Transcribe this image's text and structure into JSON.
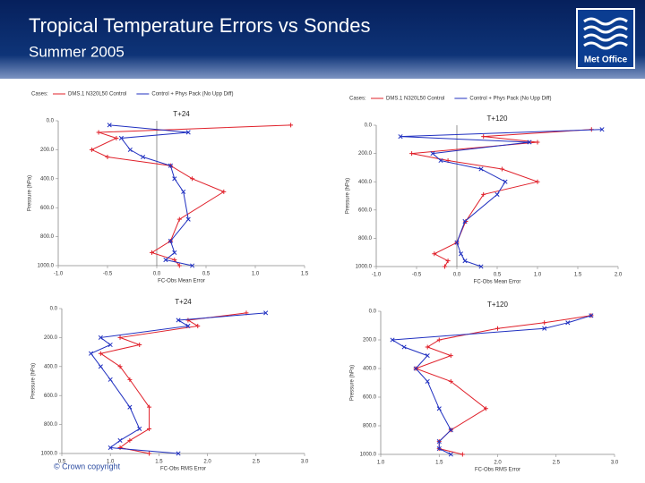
{
  "header": {
    "title": "Tropical Temperature Errors vs Sondes",
    "subtitle": "Summer 2005",
    "logo": "Met Office"
  },
  "footer": {
    "copyright": "© Crown copyright"
  },
  "chart_data": [
    {
      "type": "profile",
      "title": "T+24",
      "legend_title": "Cases:",
      "xlabel": "FC-Obs Mean Error",
      "ylabel": "Pressure (hPa)",
      "y": [
        30,
        80,
        120,
        200,
        250,
        310,
        400,
        490,
        680,
        830,
        910,
        960,
        1000
      ],
      "series": [
        {
          "name": "DMS.1 N320L50 Control",
          "color": "#e0202a",
          "marker": "plus",
          "values": [
            1.36,
            -0.59,
            -0.41,
            -0.66,
            -0.5,
            0.14,
            0.36,
            0.68,
            0.23,
            0.14,
            -0.05,
            0.18,
            0.23
          ]
        },
        {
          "name": "Control + Phys Pack (No Upp Diff)",
          "color": "#2030c0",
          "marker": "cross",
          "values": [
            -0.48,
            0.32,
            -0.36,
            -0.27,
            -0.14,
            0.14,
            0.18,
            0.27,
            0.32,
            0.14,
            0.18,
            0.09,
            0.36
          ]
        }
      ],
      "xlim": [
        -1,
        1.5
      ],
      "xticks": [
        {
          "value": -1,
          "label": "-1.0"
        },
        {
          "value": -0.5,
          "label": "-0.5"
        },
        {
          "value": 0,
          "label": "0.0"
        },
        {
          "value": 0.5,
          "label": "0.5"
        },
        {
          "value": 1,
          "label": "1.0"
        },
        {
          "value": 1.5,
          "label": "1.5"
        }
      ],
      "ylim": [
        0,
        1000
      ],
      "yticks": [
        {
          "value": 0,
          "label": "0.0"
        },
        {
          "value": 200,
          "label": "200.0"
        },
        {
          "value": 400,
          "label": "400.0"
        },
        {
          "value": 600,
          "label": "600.0"
        },
        {
          "value": 800,
          "label": "800.0"
        },
        {
          "value": 1000,
          "label": "1000.0"
        }
      ],
      "xref": 0
    },
    {
      "type": "profile",
      "title": "T+120",
      "legend_title": "Cases:",
      "xlabel": "FC-Obs Mean Error",
      "ylabel": "Pressure (hPa)",
      "y": [
        30,
        80,
        120,
        200,
        250,
        310,
        400,
        490,
        680,
        830,
        910,
        960,
        1000
      ],
      "series": [
        {
          "name": "DMS.1 N320L50 Control",
          "color": "#e0202a",
          "marker": "plus",
          "values": [
            1.67,
            0.33,
            1.0,
            -0.56,
            -0.11,
            0.56,
            1.0,
            0.33,
            0.11,
            0.0,
            -0.28,
            -0.11,
            -0.15
          ]
        },
        {
          "name": "Control + Phys Pack (No Upp Diff)",
          "color": "#2030c0",
          "marker": "cross",
          "values": [
            1.8,
            -0.7,
            0.9,
            -0.3,
            -0.2,
            0.3,
            0.6,
            0.5,
            0.1,
            0.0,
            0.05,
            0.1,
            0.3
          ]
        }
      ],
      "xlim": [
        -1,
        2
      ],
      "xticks": [
        {
          "value": -1,
          "label": "-1.0"
        },
        {
          "value": -0.5,
          "label": "-0.5"
        },
        {
          "value": 0,
          "label": "0.0"
        },
        {
          "value": 0.5,
          "label": "0.5"
        },
        {
          "value": 1,
          "label": "1.0"
        },
        {
          "value": 1.5,
          "label": "1.5"
        },
        {
          "value": 2,
          "label": "2.0"
        }
      ],
      "ylim": [
        0,
        1000
      ],
      "yticks": [
        {
          "value": 0,
          "label": "0.0"
        },
        {
          "value": 200,
          "label": "200.0"
        },
        {
          "value": 400,
          "label": "400.0"
        },
        {
          "value": 600,
          "label": "600.0"
        },
        {
          "value": 800,
          "label": "800.0"
        },
        {
          "value": 1000,
          "label": "1000.0"
        }
      ],
      "xref": 0
    },
    {
      "type": "profile",
      "title": "T+24",
      "xlabel": "FC-Obs RMS Error",
      "ylabel": "Pressure (hPa)",
      "y": [
        30,
        80,
        120,
        200,
        250,
        310,
        400,
        490,
        680,
        830,
        910,
        960,
        1000
      ],
      "series": [
        {
          "color": "#e0202a",
          "marker": "plus",
          "values": [
            2.4,
            1.8,
            1.9,
            1.1,
            1.3,
            0.9,
            1.1,
            1.2,
            1.4,
            1.4,
            1.2,
            1.1,
            1.4
          ]
        },
        {
          "color": "#2030c0",
          "marker": "cross",
          "values": [
            2.6,
            1.7,
            1.8,
            0.9,
            1.0,
            0.8,
            0.9,
            1.0,
            1.2,
            1.3,
            1.1,
            1.0,
            1.7
          ]
        }
      ],
      "xlim": [
        0.5,
        3
      ],
      "xticks": [
        {
          "value": 0.5,
          "label": "0.5"
        },
        {
          "value": 1,
          "label": "1.0"
        },
        {
          "value": 1.5,
          "label": "1.5"
        },
        {
          "value": 2,
          "label": "2.0"
        },
        {
          "value": 2.5,
          "label": "2.5"
        },
        {
          "value": 3,
          "label": "3.0"
        }
      ],
      "ylim": [
        0,
        1000
      ],
      "yticks": [
        {
          "value": 0,
          "label": "0.0"
        },
        {
          "value": 200,
          "label": "200.0"
        },
        {
          "value": 400,
          "label": "400.0"
        },
        {
          "value": 600,
          "label": "600.0"
        },
        {
          "value": 800,
          "label": "800.0"
        },
        {
          "value": 1000,
          "label": "1000.0"
        }
      ]
    },
    {
      "type": "profile",
      "title": "T+120",
      "xlabel": "FC-Obs RMS Error",
      "ylabel": "Pressure (hPa)",
      "y": [
        30,
        80,
        120,
        200,
        250,
        310,
        400,
        490,
        680,
        830,
        910,
        960,
        1000
      ],
      "series": [
        {
          "color": "#e0202a",
          "marker": "plus",
          "values": [
            2.8,
            2.4,
            2.0,
            1.5,
            1.4,
            1.6,
            1.3,
            1.6,
            1.9,
            1.6,
            1.5,
            1.5,
            1.7
          ]
        },
        {
          "color": "#2030c0",
          "marker": "cross",
          "values": [
            2.8,
            2.6,
            2.4,
            1.1,
            1.2,
            1.4,
            1.3,
            1.4,
            1.5,
            1.6,
            1.5,
            1.5,
            1.6
          ]
        }
      ],
      "xlim": [
        1,
        3
      ],
      "xticks": [
        {
          "value": 1,
          "label": "1.0"
        },
        {
          "value": 1.5,
          "label": "1.5"
        },
        {
          "value": 2,
          "label": "2.0"
        },
        {
          "value": 2.5,
          "label": "2.5"
        },
        {
          "value": 3,
          "label": "3.0"
        }
      ],
      "ylim": [
        0,
        1000
      ],
      "yticks": [
        {
          "value": 0,
          "label": "0.0"
        },
        {
          "value": 200,
          "label": "200.0"
        },
        {
          "value": 400,
          "label": "400.0"
        },
        {
          "value": 600,
          "label": "600.0"
        },
        {
          "value": 800,
          "label": "800.0"
        },
        {
          "value": 1000,
          "label": "1000.0"
        }
      ]
    }
  ]
}
